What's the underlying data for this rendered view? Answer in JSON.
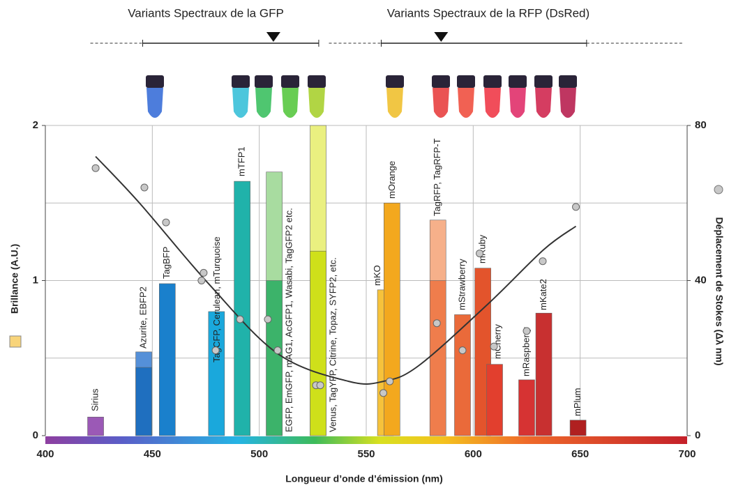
{
  "chart_data": {
    "type": "bar",
    "annotations": [
      "Variants Spectraux de la GFP",
      "Variants Spectraux de la RFP (DsRed)"
    ],
    "ranges": [
      {
        "start": 445.5,
        "end": 527.8,
        "marker": 506.6
      },
      {
        "start": 557,
        "end": 653,
        "marker": 585
      }
    ],
    "x_label": "Longueur d’onde d’émission (nm)",
    "y_label": "Brillance (A.U.)",
    "y2_label": "Déplacement de Stokes (Δλ nm)",
    "labels": [
      "Sirius",
      "Azurite, EBFP2",
      "TagBFP",
      "TagCFP, Cerulean, mTurquoise",
      "mTFP1",
      "EGFP, EmGFP, mAG1, AcGFP1, Wasabi, TagGFP2 etc.",
      "Venus, TagYFP, Citrine, Topaz, SYFP2, etc.",
      "mKO",
      "mOrange",
      "TagRFP, TagRFP-T",
      "mStrawberry",
      "mRuby",
      "mCherry",
      "mRaspberry",
      "mKate2",
      "mPlum"
    ],
    "x": [
      423.5,
      446,
      457,
      480,
      492,
      507,
      527.5,
      559,
      562,
      583.5,
      595,
      604.5,
      610,
      625,
      633,
      649
    ],
    "values": [
      0.12,
      0.44,
      0.98,
      0.8,
      1.64,
      1.0,
      1.19,
      0.94,
      1.5,
      1.0,
      0.78,
      1.08,
      0.46,
      0.36,
      0.79,
      0.1
    ],
    "alt_values": [
      null,
      0.54,
      null,
      null,
      null,
      1.7,
      2.0,
      null,
      null,
      1.39,
      null,
      null,
      null,
      null,
      null,
      null
    ],
    "colors": [
      "#9b59b6",
      "#1f6fbf",
      "#1a80cc",
      "#1aa8dc",
      "#20b2aa",
      "#3cb36a",
      "#cfe01a",
      "#f6c23b",
      "#f3a81e",
      "#ef7d4c",
      "#ea6a3a",
      "#e3542c",
      "#e23f2e",
      "#d63333",
      "#c83030",
      "#b02020"
    ],
    "alt_colors": [
      null,
      "#5590d8",
      null,
      null,
      null,
      "#a8dca0",
      "#eaf080",
      null,
      null,
      "#f6b08a",
      null,
      null,
      null,
      null,
      null,
      null
    ],
    "scatter": {
      "axis": "y2",
      "color": "#c8c8c8",
      "x": [
        423.5,
        446.3,
        456.4,
        474,
        473,
        479.6,
        491,
        504,
        508.6,
        526.5,
        528.5,
        558,
        561,
        583,
        595,
        603,
        609.7,
        625,
        632.5,
        648
      ],
      "values": [
        69,
        64,
        55,
        42,
        40,
        22,
        30,
        30,
        22,
        13,
        13,
        11,
        14,
        29,
        22,
        47,
        23,
        27,
        45,
        59
      ]
    },
    "trend": {
      "axis": "y2",
      "color": "#333333",
      "x": [
        423.5,
        444,
        476.6,
        509,
        541.8,
        558,
        574.4,
        607,
        633,
        648
      ],
      "values": [
        72,
        60,
        39,
        21,
        14,
        14,
        18,
        34,
        48,
        54
      ]
    },
    "xlim": [
      400,
      700
    ],
    "xticks": [
      400,
      450,
      500,
      550,
      600,
      650,
      700
    ],
    "ylim": [
      0,
      2
    ],
    "yticks": [
      0,
      1,
      2
    ],
    "ygrid": [
      0.5,
      1,
      1.5,
      2
    ],
    "y2lim": [
      0,
      80
    ],
    "y2ticks": [
      0,
      40,
      80
    ],
    "grid": true
  }
}
